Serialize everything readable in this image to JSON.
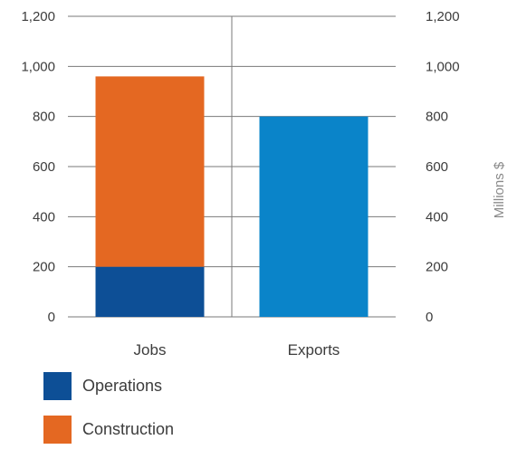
{
  "chart_data": {
    "type": "bar",
    "stacked": true,
    "categories": [
      "Jobs",
      "Exports"
    ],
    "series": [
      {
        "name": "Operations",
        "values": [
          200,
          0
        ],
        "color": "#0d4f96"
      },
      {
        "name": "Construction",
        "values": [
          760,
          0
        ],
        "color": "#e46822"
      },
      {
        "values": [
          0,
          800
        ],
        "color": "#0a84c9"
      }
    ],
    "yticks": [
      "0",
      "200",
      "400",
      "600",
      "800",
      "1,000",
      "1,200"
    ],
    "ylim": [
      0,
      1200
    ],
    "ylabel_right": "Millions $",
    "grid": true,
    "legend_position": "bottom-left"
  },
  "legend": [
    {
      "label": "Operations",
      "color": "#0d4f96"
    },
    {
      "label": "Construction",
      "color": "#e46822"
    }
  ]
}
